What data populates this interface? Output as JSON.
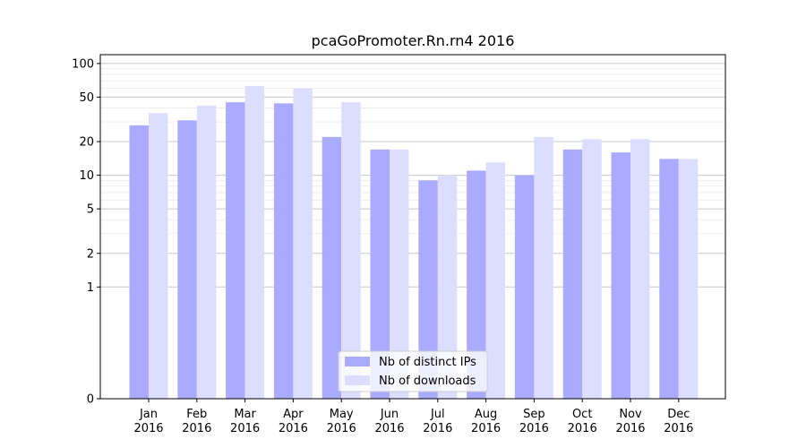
{
  "chart_data": {
    "type": "bar",
    "title": "pcaGoPromoter.Rn.rn4 2016",
    "xlabel": "",
    "ylabel": "",
    "yscale": "symlog",
    "ylim": [
      0,
      120
    ],
    "y_ticks": [
      0,
      1,
      2,
      5,
      10,
      20,
      50,
      100
    ],
    "y_tick_labels": [
      "0",
      "1",
      "2",
      "5",
      "10",
      "20",
      "50",
      "100"
    ],
    "categories": [
      [
        "Jan",
        "2016"
      ],
      [
        "Feb",
        "2016"
      ],
      [
        "Mar",
        "2016"
      ],
      [
        "Apr",
        "2016"
      ],
      [
        "May",
        "2016"
      ],
      [
        "Jun",
        "2016"
      ],
      [
        "Jul",
        "2016"
      ],
      [
        "Aug",
        "2016"
      ],
      [
        "Sep",
        "2016"
      ],
      [
        "Oct",
        "2016"
      ],
      [
        "Nov",
        "2016"
      ],
      [
        "Dec",
        "2016"
      ]
    ],
    "series": [
      {
        "name": "Nb of distinct IPs",
        "color": "#aaaaff",
        "values": [
          28,
          31,
          45,
          44,
          22,
          17,
          9,
          11,
          10,
          17,
          16,
          14
        ]
      },
      {
        "name": "Nb of downloads",
        "color": "#ddddff",
        "values": [
          36,
          42,
          63,
          60,
          45,
          17,
          10,
          13,
          22,
          21,
          21,
          14
        ]
      }
    ],
    "legend_position": "bottom-center",
    "grid": true
  }
}
